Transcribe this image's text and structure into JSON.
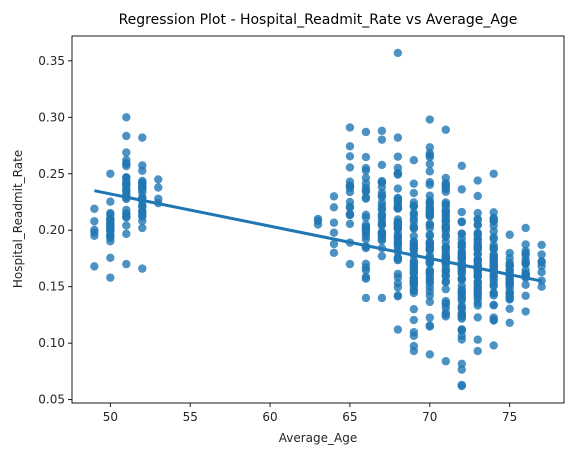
{
  "chart_data": {
    "type": "scatter",
    "title": "Regression Plot - Hospital_Readmit_Rate vs Average_Age",
    "xlabel": "Average_Age",
    "ylabel": "Hospital_Readmit_Rate",
    "xlim": [
      47.6,
      78.4
    ],
    "ylim": [
      0.047,
      0.372
    ],
    "xticks": [
      50,
      55,
      60,
      65,
      70,
      75
    ],
    "yticks": [
      0.05,
      0.1,
      0.15,
      0.2,
      0.25,
      0.3,
      0.35
    ],
    "grid": false,
    "legend": "none",
    "point_color": "#1f77b4",
    "line_color": "#1f77b4",
    "columns": [
      {
        "x": 49,
        "min": 0.168,
        "max": 0.219,
        "count": 6
      },
      {
        "x": 50,
        "min": 0.158,
        "max": 0.25,
        "count": 26
      },
      {
        "x": 51,
        "min": 0.17,
        "max": 0.3,
        "count": 30
      },
      {
        "x": 52,
        "min": 0.166,
        "max": 0.282,
        "count": 28
      },
      {
        "x": 53,
        "min": 0.224,
        "max": 0.245,
        "count": 4
      },
      {
        "x": 63,
        "min": 0.205,
        "max": 0.21,
        "count": 3
      },
      {
        "x": 64,
        "min": 0.18,
        "max": 0.23,
        "count": 6
      },
      {
        "x": 65,
        "min": 0.17,
        "max": 0.291,
        "count": 20
      },
      {
        "x": 66,
        "min": 0.14,
        "max": 0.287,
        "count": 30
      },
      {
        "x": 67,
        "min": 0.14,
        "max": 0.288,
        "count": 30
      },
      {
        "x": 68,
        "min": 0.112,
        "max": 0.282,
        "count": 50
      },
      {
        "x": 69,
        "min": 0.093,
        "max": 0.262,
        "count": 55
      },
      {
        "x": 70,
        "min": 0.09,
        "max": 0.298,
        "count": 60
      },
      {
        "x": 71,
        "min": 0.084,
        "max": 0.289,
        "count": 60
      },
      {
        "x": 72,
        "min": 0.063,
        "max": 0.257,
        "count": 60
      },
      {
        "x": 73,
        "min": 0.093,
        "max": 0.244,
        "count": 55
      },
      {
        "x": 74,
        "min": 0.098,
        "max": 0.25,
        "count": 45
      },
      {
        "x": 75,
        "min": 0.118,
        "max": 0.196,
        "count": 30
      },
      {
        "x": 76,
        "min": 0.128,
        "max": 0.202,
        "count": 20
      },
      {
        "x": 77,
        "min": 0.15,
        "max": 0.187,
        "count": 8
      }
    ],
    "extra_points": [
      {
        "x": 68,
        "y": 0.357
      },
      {
        "x": 72,
        "y": 0.062
      }
    ],
    "regression_line": {
      "x": [
        49,
        77
      ],
      "y": [
        0.235,
        0.155
      ]
    }
  }
}
